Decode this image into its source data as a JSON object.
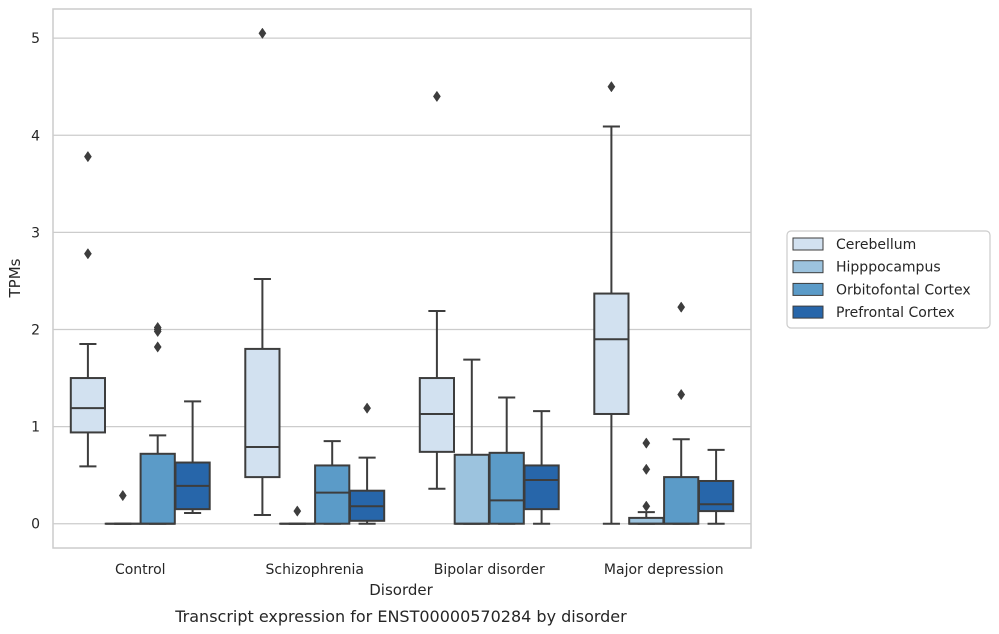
{
  "chart_data": {
    "type": "box",
    "xlabel": "Disorder",
    "ylabel": "TPMs",
    "caption": "Transcript expression for ENST00000570284 by disorder",
    "categories": [
      "Control",
      "Schizophrenia",
      "Bipolar disorder",
      "Major depression"
    ],
    "yticks": [
      "0",
      "1",
      "2",
      "3",
      "4",
      "5"
    ],
    "ylim": [
      -0.25,
      5.3
    ],
    "grid": true,
    "legend_position": "right",
    "series": [
      {
        "name": "Cerebellum",
        "color": "#d2e1f0",
        "boxes": [
          {
            "q1": 0.94,
            "median": 1.19,
            "q3": 1.5,
            "whisker_low": 0.59,
            "whisker_high": 1.85,
            "outliers": [
              2.78,
              3.78
            ]
          },
          {
            "q1": 0.48,
            "median": 0.79,
            "q3": 1.8,
            "whisker_low": 0.09,
            "whisker_high": 2.52,
            "outliers": [
              5.05
            ]
          },
          {
            "q1": 0.74,
            "median": 1.13,
            "q3": 1.5,
            "whisker_low": 0.36,
            "whisker_high": 2.19,
            "outliers": [
              4.4
            ]
          },
          {
            "q1": 1.13,
            "median": 1.9,
            "q3": 2.37,
            "whisker_low": 0.0,
            "whisker_high": 4.09,
            "outliers": [
              4.5
            ]
          }
        ]
      },
      {
        "name": "Hipppocampus",
        "color": "#9cc3de",
        "boxes": [
          {
            "q1": 0.0,
            "median": 0.0,
            "q3": 0.0,
            "whisker_low": 0.0,
            "whisker_high": 0.0,
            "outliers": [
              0.29
            ]
          },
          {
            "q1": 0.0,
            "median": 0.0,
            "q3": 0.0,
            "whisker_low": 0.0,
            "whisker_high": 0.0,
            "outliers": [
              0.13
            ]
          },
          {
            "q1": 0.0,
            "median": 0.0,
            "q3": 0.71,
            "whisker_low": 0.0,
            "whisker_high": 1.69,
            "outliers": []
          },
          {
            "q1": 0.0,
            "median": 0.0,
            "q3": 0.06,
            "whisker_low": 0.0,
            "whisker_high": 0.12,
            "outliers": [
              0.18,
              0.56,
              0.83
            ]
          }
        ]
      },
      {
        "name": "Orbitofontal Cortex",
        "color": "#5b9bc8",
        "boxes": [
          {
            "q1": 0.0,
            "median": 0.0,
            "q3": 0.72,
            "whisker_low": 0.0,
            "whisker_high": 0.91,
            "outliers": [
              1.82,
              1.98,
              2.0,
              2.02
            ]
          },
          {
            "q1": 0.0,
            "median": 0.32,
            "q3": 0.6,
            "whisker_low": 0.0,
            "whisker_high": 0.85,
            "outliers": []
          },
          {
            "q1": 0.0,
            "median": 0.24,
            "q3": 0.73,
            "whisker_low": 0.0,
            "whisker_high": 1.3,
            "outliers": []
          },
          {
            "q1": 0.0,
            "median": 0.0,
            "q3": 0.48,
            "whisker_low": 0.0,
            "whisker_high": 0.87,
            "outliers": [
              1.33,
              2.23
            ]
          }
        ]
      },
      {
        "name": "Prefrontal Cortex",
        "color": "#2766aa",
        "boxes": [
          {
            "q1": 0.15,
            "median": 0.39,
            "q3": 0.63,
            "whisker_low": 0.11,
            "whisker_high": 1.26,
            "outliers": []
          },
          {
            "q1": 0.03,
            "median": 0.18,
            "q3": 0.34,
            "whisker_low": 0.0,
            "whisker_high": 0.68,
            "outliers": [
              1.19
            ]
          },
          {
            "q1": 0.15,
            "median": 0.45,
            "q3": 0.6,
            "whisker_low": 0.0,
            "whisker_high": 1.16,
            "outliers": []
          },
          {
            "q1": 0.13,
            "median": 0.2,
            "q3": 0.44,
            "whisker_low": 0.0,
            "whisker_high": 0.76,
            "outliers": []
          }
        ]
      }
    ]
  }
}
